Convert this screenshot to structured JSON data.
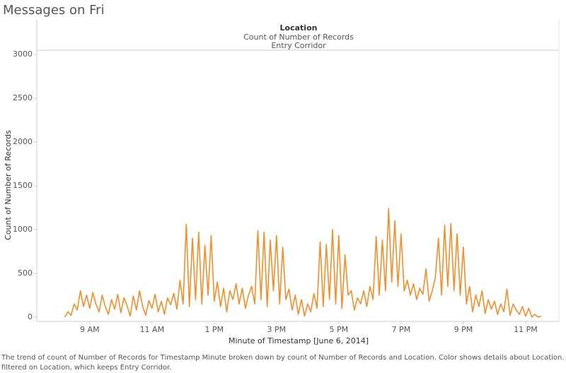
{
  "chart_data": {
    "type": "line",
    "title": "Messages on Fri",
    "header": "Location",
    "subheader": "Count of Number of Records",
    "panel": "Entry Corridor",
    "y_label": "Count of Number of Records",
    "x_label": "Minute of Timestamp [June 6, 2014]",
    "caption": [
      "The trend of count of Number of Records for Timestamp Minute broken down by count of Number of Records and Location.  Color shows details about Location. The view is",
      "filtered on Location, which keeps Entry Corridor."
    ],
    "x": [
      8.2,
      8.3,
      8.4,
      8.5,
      8.6,
      8.7,
      8.8,
      8.9,
      9.0,
      9.1,
      9.2,
      9.3,
      9.4,
      9.5,
      9.6,
      9.7,
      9.8,
      9.9,
      10.0,
      10.1,
      10.2,
      10.3,
      10.4,
      10.5,
      10.6,
      10.7,
      10.8,
      10.9,
      11.0,
      11.1,
      11.2,
      11.3,
      11.4,
      11.5,
      11.6,
      11.7,
      11.8,
      11.9,
      12.0,
      12.1,
      12.2,
      12.3,
      12.4,
      12.5,
      12.6,
      12.7,
      12.8,
      12.9,
      13.0,
      13.1,
      13.2,
      13.3,
      13.4,
      13.5,
      13.6,
      13.7,
      13.8,
      13.9,
      14.0,
      14.1,
      14.2,
      14.3,
      14.4,
      14.5,
      14.6,
      14.7,
      14.8,
      14.9,
      15.0,
      15.1,
      15.2,
      15.3,
      15.4,
      15.5,
      15.6,
      15.7,
      15.8,
      15.9,
      16.0,
      16.1,
      16.2,
      16.3,
      16.4,
      16.5,
      16.6,
      16.7,
      16.8,
      16.9,
      17.0,
      17.1,
      17.2,
      17.3,
      17.4,
      17.5,
      17.6,
      17.7,
      17.8,
      17.9,
      18.0,
      18.1,
      18.2,
      18.3,
      18.4,
      18.5,
      18.6,
      18.7,
      18.8,
      18.9,
      19.0,
      19.1,
      19.2,
      19.3,
      19.4,
      19.5,
      19.6,
      19.7,
      19.8,
      19.9,
      20.0,
      20.1,
      20.2,
      20.3,
      20.4,
      20.5,
      20.6,
      20.7,
      20.8,
      20.9,
      21.0,
      21.1,
      21.2,
      21.3,
      21.4,
      21.5,
      21.6,
      21.7,
      21.8,
      21.9,
      22.0,
      22.1,
      22.2,
      22.3,
      22.4,
      22.5,
      22.6,
      22.7,
      22.8,
      22.9,
      23.0,
      23.1,
      23.2,
      23.3,
      23.4,
      23.5
    ],
    "series": [
      {
        "name": "Entry Corridor",
        "color": "#f28e2b",
        "values": [
          0,
          60,
          20,
          150,
          80,
          300,
          120,
          250,
          100,
          280,
          150,
          60,
          250,
          120,
          30,
          200,
          90,
          260,
          50,
          220,
          130,
          10,
          240,
          80,
          300,
          120,
          20,
          190,
          100,
          260,
          60,
          180,
          30,
          220,
          140,
          270,
          90,
          420,
          150,
          1060,
          120,
          900,
          200,
          970,
          150,
          820,
          250,
          930,
          180,
          400,
          120,
          330,
          60,
          300,
          200,
          380,
          150,
          330,
          100,
          250,
          350,
          150,
          990,
          200,
          970,
          120,
          880,
          300,
          930,
          150,
          800,
          200,
          320,
          80,
          250,
          30,
          200,
          10,
          150,
          60,
          270,
          100,
          860,
          120,
          830,
          200,
          1000,
          150,
          930,
          100,
          710,
          250,
          300,
          80,
          220,
          150,
          300,
          120,
          350,
          200,
          920,
          250,
          880,
          300,
          1240,
          400,
          1100,
          350,
          950,
          300,
          420,
          250,
          380,
          200,
          330,
          260,
          550,
          180,
          300,
          450,
          900,
          250,
          1050,
          350,
          1070,
          300,
          950,
          250,
          800,
          150,
          350,
          60,
          250,
          120,
          300,
          40,
          200,
          90,
          180,
          30,
          150,
          60,
          320,
          20,
          150,
          80,
          30,
          120,
          10,
          100,
          0,
          30,
          0,
          10
        ]
      }
    ],
    "xlim": [
      7.3,
      24.07
    ],
    "ylim": [
      -50,
      3050
    ],
    "xticks": [
      {
        "value": 9,
        "label": "9 AM"
      },
      {
        "value": 11,
        "label": "11 AM"
      },
      {
        "value": 13,
        "label": "1 PM"
      },
      {
        "value": 15,
        "label": "3 PM"
      },
      {
        "value": 17,
        "label": "5 PM"
      },
      {
        "value": 19,
        "label": "7 PM"
      },
      {
        "value": 21,
        "label": "9 PM"
      },
      {
        "value": 23,
        "label": "11 PM"
      }
    ],
    "yticks": [
      0,
      500,
      1000,
      1500,
      2000,
      2500,
      3000
    ]
  }
}
